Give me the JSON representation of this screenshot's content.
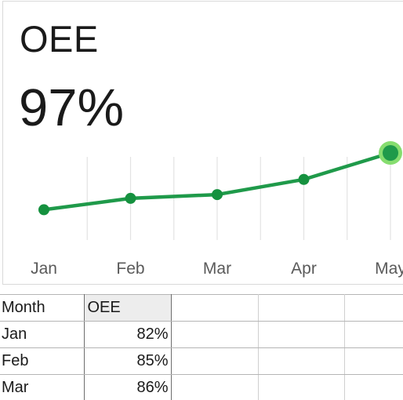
{
  "kpi": {
    "title": "OEE",
    "value": "97%"
  },
  "colors": {
    "line": "#1f9a4a",
    "point": "#15913f",
    "highlight_outer": "#86dd6f",
    "highlight_inner": "#1f9a4a",
    "gridline": "#e3e3e3",
    "axis_text": "#5a5a5a"
  },
  "chart_data": {
    "type": "line",
    "title": "",
    "xlabel": "",
    "ylabel": "",
    "categories": [
      "Jan",
      "Feb",
      "Mar",
      "Apr",
      "May"
    ],
    "series": [
      {
        "values": [
          82,
          85,
          86,
          90,
          97
        ]
      }
    ],
    "ylim": [
      74,
      97
    ],
    "grid": "vertical",
    "highlighted_point": "May"
  },
  "table": {
    "headers": [
      "Month",
      "OEE"
    ],
    "rows": [
      [
        "Jan",
        "82%"
      ],
      [
        "Feb",
        "85%"
      ],
      [
        "Mar",
        "86%"
      ]
    ]
  }
}
